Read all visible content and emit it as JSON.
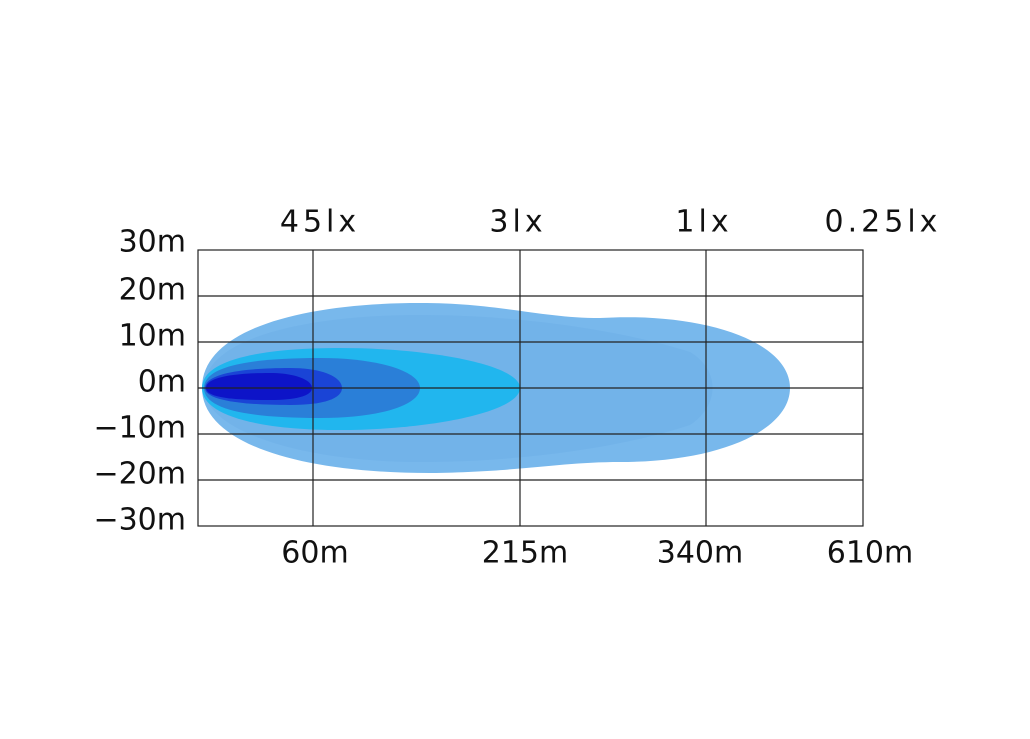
{
  "y_labels": [
    "30m",
    "20m",
    "10m",
    "0m",
    "−10m",
    "−20m",
    "−30m"
  ],
  "x_labels": [
    "60m",
    "215m",
    "340m",
    "610m"
  ],
  "lux_labels": [
    "45lx",
    "3lx",
    "1lx",
    "0.25lx"
  ]
}
